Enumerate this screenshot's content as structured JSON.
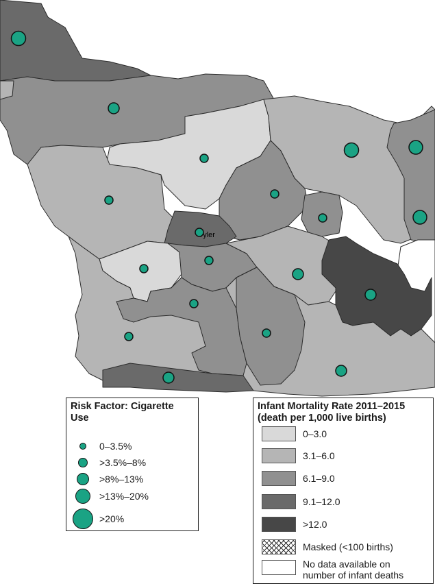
{
  "map": {
    "city_label": "Tyler",
    "colors": {
      "c0": "#d9d9d9",
      "c1": "#b5b5b5",
      "c2": "#909090",
      "c3": "#6a6a6a",
      "c4": "#474747",
      "dot": "#1aa384",
      "border": "#2b2b2b"
    }
  },
  "risk_legend": {
    "title": "Risk Factor: Cigarette Use",
    "items": [
      {
        "label": "0–3.5%"
      },
      {
        "label": ">3.5%–8%"
      },
      {
        "label": ">8%–13%"
      },
      {
        "label": ">13%–20%"
      },
      {
        "label": ">20%"
      }
    ]
  },
  "rate_legend": {
    "title_line1": "Infant Mortality Rate 2011–2015",
    "title_line2": "(death per 1,000 live births)",
    "items": [
      {
        "label": "0–3.0",
        "color": "#d9d9d9"
      },
      {
        "label": "3.1–6.0",
        "color": "#b5b5b5"
      },
      {
        "label": "6.1–9.0",
        "color": "#909090"
      },
      {
        "label": "9.1–12.0",
        "color": "#6a6a6a"
      },
      {
        "label": ">12.0",
        "color": "#474747"
      },
      {
        "label": "Masked (<100 births)",
        "color": "hatch"
      },
      {
        "label_line1": "No data available on",
        "label_line2": "number of infant deaths",
        "color": "#ffffff"
      }
    ]
  }
}
